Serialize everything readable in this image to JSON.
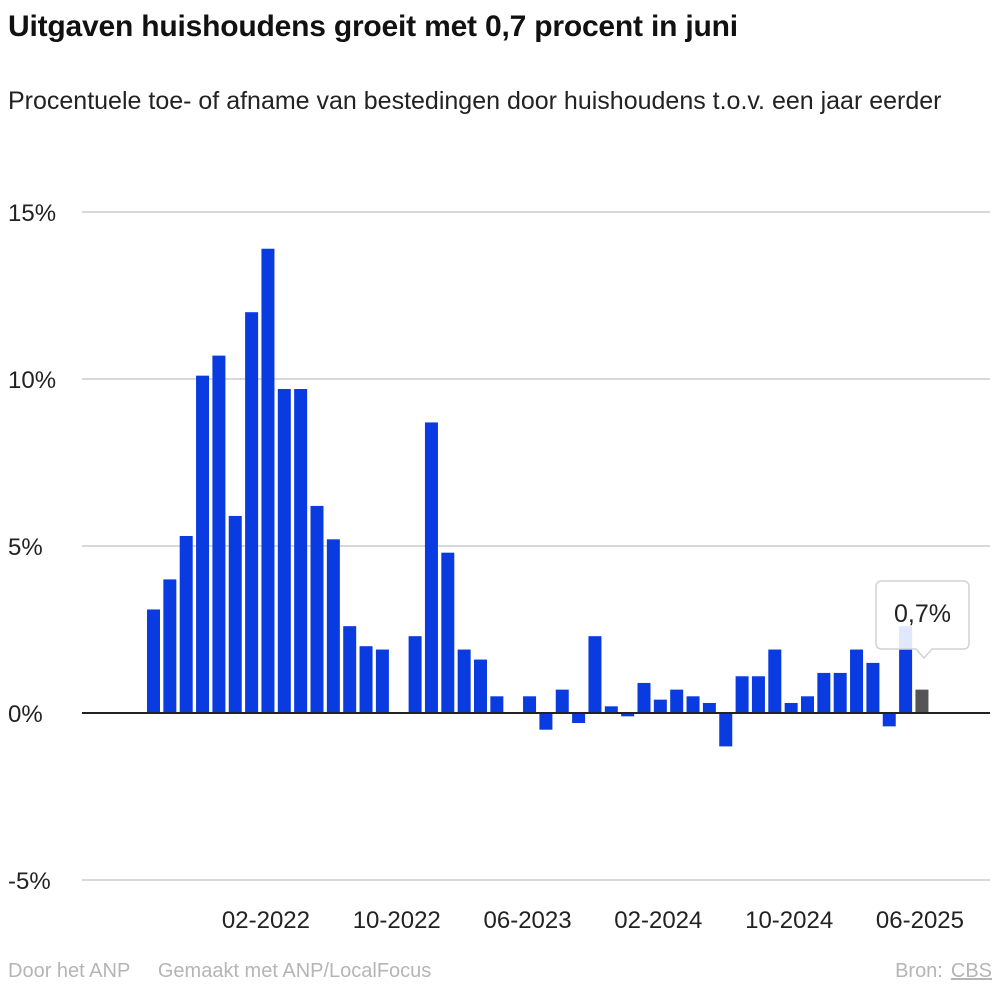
{
  "header": {
    "title": "Uitgaven huishoudens groeit met 0,7 procent in juni",
    "subtitle": "Procentuele toe- of afname van bestedingen door huishoudens t.o.v. een jaar eerder"
  },
  "footer": {
    "by": "Door het ANP",
    "made_with": "Gemaakt met ANP/LocalFocus",
    "source_label": "Bron:",
    "source": "CBS"
  },
  "tooltip": {
    "label": "0,7%",
    "highlight_index": 47
  },
  "colors": {
    "bar": "#0a3be0",
    "highlight": "#555555",
    "grid": "#cccccc",
    "zero_line": "#222222"
  },
  "chart_data": {
    "type": "bar",
    "title": "Uitgaven huishoudens groeit met 0,7 procent in juni",
    "subtitle": "Procentuele toe- of afname van bestedingen door huishoudens t.o.v. een jaar eerder",
    "x": [
      "2021-07",
      "2021-08",
      "2021-09",
      "2021-10",
      "2021-11",
      "2021-12",
      "2022-01",
      "2022-02",
      "2022-03",
      "2022-04",
      "2022-05",
      "2022-06",
      "2022-07",
      "2022-08",
      "2022-09",
      "2022-10",
      "2022-11",
      "2022-12",
      "2023-01",
      "2023-02",
      "2023-03",
      "2023-04",
      "2023-05",
      "2023-06",
      "2023-07",
      "2023-08",
      "2023-09",
      "2023-10",
      "2023-11",
      "2023-12",
      "2024-01",
      "2024-02",
      "2024-03",
      "2024-04",
      "2024-05",
      "2024-06",
      "2024-07",
      "2024-08",
      "2024-09",
      "2024-10",
      "2024-11",
      "2024-12",
      "2025-01",
      "2025-02",
      "2025-03",
      "2025-04",
      "2025-05",
      "2025-06"
    ],
    "values": [
      3.1,
      4.0,
      5.3,
      10.1,
      10.7,
      5.9,
      12.0,
      13.9,
      9.7,
      9.7,
      6.2,
      5.2,
      2.6,
      2.0,
      1.9,
      null,
      2.3,
      8.7,
      4.8,
      1.9,
      1.6,
      0.5,
      null,
      0.5,
      -0.5,
      0.7,
      -0.3,
      2.3,
      0.2,
      -0.1,
      0.9,
      0.4,
      0.7,
      0.5,
      0.3,
      -1.0,
      1.1,
      1.1,
      1.9,
      0.3,
      0.5,
      1.2,
      1.2,
      1.9,
      1.5,
      -0.4,
      2.6,
      0.7
    ],
    "x_tick_labels": [
      "02-2022",
      "10-2022",
      "06-2023",
      "02-2024",
      "10-2024",
      "06-2025"
    ],
    "x_tick_indices": [
      7,
      15,
      23,
      31,
      39,
      47
    ],
    "y_ticks": [
      15,
      10,
      5,
      0,
      -5
    ],
    "y_tick_labels": [
      "15%",
      "10%",
      "5%",
      "0%",
      "-5%"
    ],
    "ylim": [
      -5,
      15
    ],
    "grid": true,
    "xlabel": "",
    "ylabel": ""
  }
}
